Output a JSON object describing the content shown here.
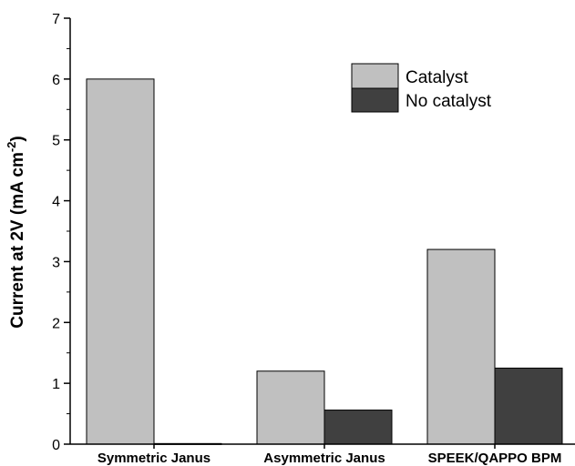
{
  "chart_data": {
    "type": "bar",
    "categories": [
      "Symmetric Janus",
      "Asymmetric Janus",
      "SPEEK/QAPPO BPM"
    ],
    "series": [
      {
        "name": "Catalyst",
        "values": [
          6.0,
          1.2,
          3.2
        ],
        "color": "#c0c0c0"
      },
      {
        "name": "No catalyst",
        "values": [
          0.01,
          0.56,
          1.25
        ],
        "color": "#404040"
      }
    ],
    "ylabel_main": "Current at 2V (mA cm",
    "ylabel_sup": "-2",
    "ylabel_end": ")",
    "ylim": [
      0,
      7
    ],
    "yticks": [
      "0",
      "1",
      "2",
      "3",
      "4",
      "5",
      "6",
      "7"
    ],
    "grid": false,
    "legend_position": "top-right"
  }
}
